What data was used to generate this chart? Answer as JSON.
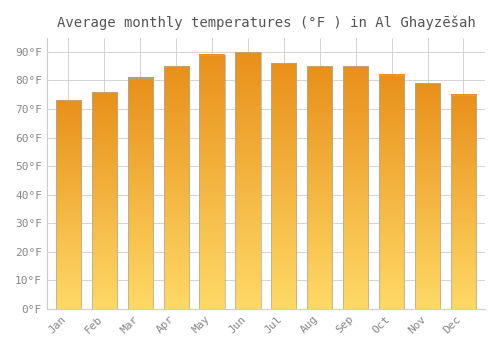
{
  "title": "Average monthly temperatures (°F ) in Al Ghayzēšah",
  "months": [
    "Jan",
    "Feb",
    "Mar",
    "Apr",
    "May",
    "Jun",
    "Jul",
    "Aug",
    "Sep",
    "Oct",
    "Nov",
    "Dec"
  ],
  "values": [
    73,
    76,
    81,
    85,
    89,
    90,
    86,
    85,
    85,
    82,
    79,
    75
  ],
  "bar_color_mid": "#F5A623",
  "bar_color_light": "#FFD966",
  "bar_color_dark": "#E8901A",
  "bar_edge_color": "#AAAAAA",
  "ylim": [
    0,
    95
  ],
  "yticks": [
    0,
    10,
    20,
    30,
    40,
    50,
    60,
    70,
    80,
    90
  ],
  "ytick_labels": [
    "0°F",
    "10°F",
    "20°F",
    "30°F",
    "40°F",
    "50°F",
    "60°F",
    "70°F",
    "80°F",
    "90°F"
  ],
  "background_color": "#FFFFFF",
  "grid_color": "#CCCCCC",
  "title_fontsize": 10,
  "tick_fontsize": 8,
  "tick_color": "#888888",
  "bar_width": 0.7
}
